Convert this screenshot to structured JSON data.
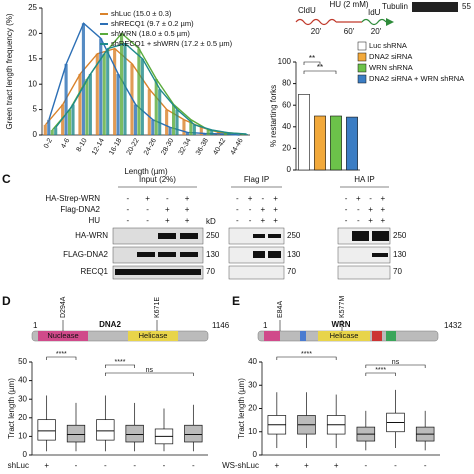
{
  "panel_a": {
    "type": "bar",
    "ylabel": "Green tract length frequency (%)",
    "xlabel": "Length (µm)",
    "categories": [
      "0-2",
      "4-6",
      "8-10",
      "12-14",
      "16-18",
      "20-22",
      "24-26",
      "28-30",
      "32-34",
      "36-38",
      "40-42",
      "44-46"
    ],
    "series": [
      {
        "name": "shLuc (15.0 ± 0.3)",
        "color": "#d9822b",
        "values": [
          2,
          6,
          12,
          16,
          17,
          14,
          9,
          5,
          3,
          1.5,
          0.5,
          0.3
        ]
      },
      {
        "name": "shRECQ1 (9.7 ± 0.2 µm)",
        "color": "#2c6fb5",
        "values": [
          3,
          14,
          22,
          19,
          12,
          6,
          3,
          1.5,
          0.5,
          0.3,
          0.2,
          0
        ]
      },
      {
        "name": "shWRN (18.0 ± 0.5 µm)",
        "color": "#5aab3c",
        "values": [
          1,
          5,
          11,
          16,
          20,
          17,
          11,
          6,
          3,
          1,
          0.5,
          0.2
        ]
      },
      {
        "name": "shRECQ1 + shWRN (17.2 ± 0.5 µm)",
        "color": "#1f8a8a",
        "values": [
          1.5,
          6,
          12,
          17,
          18,
          15,
          9,
          5,
          2,
          1,
          0.4,
          0.2
        ]
      }
    ],
    "ylim": [
      0,
      25
    ],
    "yticks": [
      0,
      5,
      10,
      15,
      20,
      25
    ]
  },
  "panel_b": {
    "scheme": {
      "cldu": "CldU",
      "hu": "HU (2 mM)",
      "idu": "IdU",
      "t1": "20'",
      "t2": "60'",
      "t3": "20'"
    },
    "blot": {
      "name": "Tubulin",
      "kd": "55"
    },
    "type": "bar",
    "ylabel": "% restarting forks",
    "categories": [
      "Luc shRNA",
      "DNA2 siRNA",
      "WRN shRNA",
      "DNA2 siRNA + WRN shRNA"
    ],
    "colors": [
      "#ffffff",
      "#f2a93b",
      "#6cc24a",
      "#3b7dc4"
    ],
    "values": [
      70,
      50,
      50,
      49
    ],
    "significance": [
      "**",
      "**"
    ],
    "ylim": [
      0,
      100
    ],
    "yticks": [
      0,
      20,
      40,
      60,
      80,
      100
    ]
  },
  "panel_c": {
    "label": "C",
    "rows": [
      {
        "name": "HA-Strep-WRN",
        "signs": [
          "-",
          "+",
          "-",
          "+",
          "-",
          "+",
          "-",
          "+",
          "-",
          "+",
          "-",
          "+"
        ]
      },
      {
        "name": "Flag-DNA2",
        "signs": [
          "-",
          "-",
          "+",
          "+",
          "-",
          "-",
          "+",
          "+",
          "-",
          "-",
          "+",
          "+"
        ]
      },
      {
        "name": "HU",
        "signs": [
          "-",
          "-",
          "+",
          "+",
          "-",
          "-",
          "+",
          "+",
          "-",
          "-",
          "+",
          "+"
        ]
      }
    ],
    "groups": [
      "Input (2%)",
      "Flag IP",
      "HA IP"
    ],
    "blots": [
      "HA-WRN",
      "FLAG-DNA2",
      "RECQ1"
    ],
    "kd": "kD",
    "markers": [
      "250",
      "130",
      "70"
    ]
  },
  "panel_d": {
    "label": "D",
    "protein": "DNA2",
    "start": "1",
    "end": "1146",
    "domains": [
      "Nuclease",
      "Helicase"
    ],
    "mutations": [
      "D294A",
      "K671E"
    ],
    "ylabel": "Tract length (µm)",
    "ylim": [
      0,
      50
    ],
    "yticks": [
      0,
      10,
      20,
      30,
      40,
      50
    ],
    "boxes": [
      {
        "whisker_low": 2,
        "q1": 8,
        "median": 13,
        "q3": 19,
        "whisker_high": 32
      },
      {
        "whisker_low": 2,
        "q1": 7,
        "median": 11,
        "q3": 16,
        "whisker_high": 28
      },
      {
        "whisker_low": 2,
        "q1": 8,
        "median": 13,
        "q3": 19,
        "whisker_high": 32
      },
      {
        "whisker_low": 2,
        "q1": 7,
        "median": 11,
        "q3": 16,
        "whisker_high": 28
      },
      {
        "whisker_low": 2,
        "q1": 6,
        "median": 10,
        "q3": 14,
        "whisker_high": 25
      },
      {
        "whisker_low": 2,
        "q1": 7,
        "median": 11,
        "q3": 16,
        "whisker_high": 27
      }
    ],
    "significance": [
      "****",
      "****",
      "ns"
    ],
    "row": {
      "name": "shLuc",
      "signs": [
        "+",
        "-",
        "-",
        "-",
        "-",
        "-"
      ]
    }
  },
  "panel_e": {
    "label": "E",
    "protein": "WRN",
    "start": "1",
    "end": "1432",
    "domains": [
      "Helicase"
    ],
    "mutations": [
      "E84A",
      "K577M"
    ],
    "ylabel": "Tract length (µm)",
    "ylim": [
      0,
      40
    ],
    "yticks": [
      0,
      10,
      20,
      30,
      40
    ],
    "boxes": [
      {
        "whisker_low": 3,
        "q1": 9,
        "median": 13,
        "q3": 17,
        "whisker_high": 27
      },
      {
        "whisker_low": 3,
        "q1": 9,
        "median": 13,
        "q3": 17,
        "whisker_high": 27
      },
      {
        "whisker_low": 3,
        "q1": 9,
        "median": 13,
        "q3": 17,
        "whisker_high": 26
      },
      {
        "whisker_low": 2,
        "q1": 6,
        "median": 9,
        "q3": 12,
        "whisker_high": 19
      },
      {
        "whisker_low": 3,
        "q1": 10,
        "median": 14,
        "q3": 18,
        "whisker_high": 28
      },
      {
        "whisker_low": 2,
        "q1": 6,
        "median": 9,
        "q3": 12,
        "whisker_high": 19
      }
    ],
    "significance": [
      "****",
      "ns",
      "****"
    ],
    "row": {
      "name": "WS-shLuc",
      "signs": [
        "+",
        "+",
        "+",
        "-",
        "-",
        "-"
      ]
    }
  }
}
